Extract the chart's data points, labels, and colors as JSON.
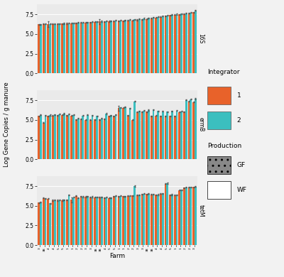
{
  "panel_labels": [
    "16S",
    "ermB",
    "tetM"
  ],
  "color_1": "#E8622A",
  "color_2": "#3BBFBF",
  "background_color": "#EAEAEA",
  "grid_color": "#FFFFFF",
  "n_bars": 34,
  "bar_width": 0.42,
  "figsize": [
    4.0,
    3.9
  ],
  "dpi": 100,
  "ylabel": "Log Gene Copies / g manure",
  "xlabel": "Farm",
  "title_fontsize": 7,
  "tick_fontsize": 5,
  "axis_label_fontsize": 7,
  "farms_16S_1": [
    6.22,
    6.28,
    6.28,
    6.28,
    6.3,
    6.32,
    6.35,
    6.38,
    6.42,
    6.45,
    6.48,
    6.52,
    6.55,
    6.58,
    6.6,
    6.62,
    6.65,
    6.68,
    6.7,
    6.72,
    6.75,
    6.8,
    6.85,
    6.9,
    7.0,
    7.1,
    7.2,
    7.3,
    7.4,
    7.45,
    7.5,
    7.55,
    7.62,
    7.75
  ],
  "farms_16S_2": [
    6.24,
    6.3,
    6.3,
    6.3,
    6.32,
    6.35,
    6.38,
    6.42,
    6.45,
    6.48,
    6.52,
    6.55,
    6.58,
    6.62,
    6.65,
    6.68,
    6.72,
    6.75,
    6.78,
    6.82,
    6.88,
    6.92,
    6.98,
    7.05,
    7.12,
    7.18,
    7.28,
    7.38,
    7.45,
    7.52,
    7.58,
    7.65,
    7.72,
    8.0
  ],
  "farms_ermB_1": [
    5.5,
    4.65,
    5.5,
    5.55,
    5.6,
    5.65,
    5.6,
    5.55,
    5.05,
    5.1,
    5.0,
    5.0,
    5.05,
    5.05,
    5.15,
    5.5,
    5.5,
    6.5,
    6.55,
    5.6,
    5.0,
    6.0,
    6.05,
    6.05,
    5.5,
    5.55,
    5.5,
    5.5,
    5.5,
    5.5,
    6.0,
    6.05,
    7.35,
    7.25
  ],
  "farms_ermB_2": [
    5.65,
    5.6,
    5.62,
    5.7,
    5.75,
    5.8,
    5.72,
    5.65,
    5.2,
    5.55,
    5.65,
    5.6,
    5.5,
    5.2,
    5.8,
    5.6,
    5.68,
    6.6,
    6.65,
    6.5,
    7.35,
    6.15,
    6.2,
    6.25,
    6.3,
    6.12,
    6.1,
    6.05,
    6.12,
    6.18,
    6.08,
    7.52,
    7.62,
    7.72
  ],
  "farms_tetM_1": [
    5.4,
    6.0,
    5.9,
    5.7,
    5.7,
    5.7,
    5.75,
    5.75,
    6.25,
    6.2,
    6.15,
    6.1,
    6.1,
    6.1,
    6.05,
    6.0,
    6.2,
    6.2,
    6.2,
    6.25,
    6.3,
    6.35,
    6.5,
    6.5,
    6.45,
    6.4,
    6.55,
    7.8,
    6.4,
    6.35,
    7.0,
    7.3,
    7.35,
    7.4
  ],
  "farms_tetM_2": [
    5.45,
    5.95,
    5.3,
    5.72,
    5.72,
    5.75,
    6.4,
    6.1,
    6.0,
    6.15,
    6.2,
    6.15,
    6.12,
    6.12,
    6.08,
    6.03,
    6.25,
    6.25,
    6.22,
    6.28,
    7.5,
    6.38,
    6.52,
    6.52,
    6.48,
    6.42,
    6.58,
    7.85,
    6.42,
    6.38,
    7.02,
    7.35,
    7.38,
    7.42
  ],
  "err_16S_1": [
    0.05,
    0.05,
    0.35,
    0.05,
    0.05,
    0.05,
    0.05,
    0.05,
    0.05,
    0.05,
    0.05,
    0.05,
    0.05,
    0.35,
    0.05,
    0.05,
    0.05,
    0.05,
    0.05,
    0.05,
    0.05,
    0.05,
    0.05,
    0.05,
    0.05,
    0.05,
    0.05,
    0.05,
    0.05,
    0.05,
    0.05,
    0.05,
    0.05,
    0.05
  ],
  "err_16S_2": [
    0.05,
    0.05,
    0.05,
    0.05,
    0.05,
    0.05,
    0.05,
    0.05,
    0.05,
    0.05,
    0.05,
    0.05,
    0.05,
    0.05,
    0.05,
    0.05,
    0.05,
    0.05,
    0.05,
    0.05,
    0.05,
    0.05,
    0.05,
    0.05,
    0.05,
    0.05,
    0.05,
    0.05,
    0.05,
    0.05,
    0.05,
    0.05,
    0.05,
    0.05
  ],
  "err_ermB_1": [
    0.05,
    0.05,
    0.05,
    0.05,
    0.05,
    0.05,
    0.05,
    0.05,
    0.05,
    0.05,
    0.05,
    0.05,
    0.05,
    0.05,
    0.05,
    0.05,
    0.05,
    0.3,
    0.05,
    0.05,
    0.05,
    0.05,
    0.05,
    0.05,
    0.05,
    0.05,
    0.05,
    0.05,
    0.05,
    0.05,
    0.05,
    0.05,
    0.05,
    0.05
  ],
  "err_ermB_2": [
    0.05,
    0.05,
    0.05,
    0.05,
    0.05,
    0.05,
    0.05,
    0.05,
    0.05,
    0.05,
    0.05,
    0.05,
    0.05,
    0.05,
    0.05,
    0.05,
    0.05,
    0.05,
    0.05,
    0.05,
    0.05,
    0.05,
    0.05,
    0.05,
    0.05,
    0.05,
    0.05,
    0.05,
    0.05,
    0.05,
    0.05,
    0.05,
    0.05,
    0.08
  ],
  "err_tetM_1": [
    0.05,
    0.05,
    0.05,
    0.05,
    0.05,
    0.05,
    0.05,
    0.35,
    0.05,
    0.05,
    0.05,
    0.05,
    0.05,
    0.05,
    0.05,
    0.05,
    0.05,
    0.05,
    0.05,
    0.05,
    0.05,
    0.05,
    0.05,
    0.05,
    0.05,
    0.05,
    0.05,
    0.05,
    0.05,
    0.05,
    0.05,
    0.05,
    0.05,
    0.05
  ],
  "err_tetM_2": [
    0.05,
    0.05,
    0.05,
    0.05,
    0.05,
    0.05,
    0.05,
    0.05,
    0.05,
    0.05,
    0.05,
    0.05,
    0.05,
    0.05,
    0.05,
    0.05,
    0.05,
    0.05,
    0.05,
    0.05,
    0.05,
    0.05,
    0.05,
    0.05,
    0.05,
    0.05,
    0.05,
    0.08,
    0.05,
    0.05,
    0.05,
    0.05,
    0.05,
    0.05
  ],
  "production_1": [
    "GF",
    "GF",
    "WF",
    "GF",
    "WF",
    "GF",
    "WF",
    "GF",
    "WF",
    "WF",
    "GF",
    "WF",
    "WF",
    "GF",
    "WF",
    "WF",
    "GF",
    "WF",
    "GF",
    "WF",
    "GF",
    "WF",
    "GF",
    "WF",
    "GF",
    "WF",
    "GF",
    "WF",
    "GF",
    "WF",
    "GF",
    "WF",
    "GF",
    "WF"
  ],
  "production_2": [
    "GF",
    "WF",
    "GF",
    "WF",
    "GF",
    "WF",
    "GF",
    "WF",
    "GF",
    "WF",
    "GF",
    "WF",
    "GF",
    "WF",
    "GF",
    "WF",
    "WF",
    "GF",
    "WF",
    "GF",
    "WF",
    "GF",
    "WF",
    "GF",
    "WF",
    "GF",
    "WF",
    "GF",
    "WF",
    "GF",
    "WF",
    "GF",
    "WF",
    "GF"
  ],
  "farm_labels": [
    "3",
    "3B",
    "4",
    "4",
    "5",
    "5",
    "1",
    "1",
    "2",
    "2",
    "3",
    "3",
    "3B",
    "3B",
    "4",
    "5",
    "5",
    "1",
    "1",
    "2",
    "2",
    "3",
    "3",
    "3B",
    "3B",
    "4",
    "4",
    "5",
    "5",
    "1",
    "1",
    "2",
    "2",
    "3"
  ],
  "yticks": [
    0.0,
    2.5,
    5.0,
    7.5
  ],
  "ymax": 8.8
}
